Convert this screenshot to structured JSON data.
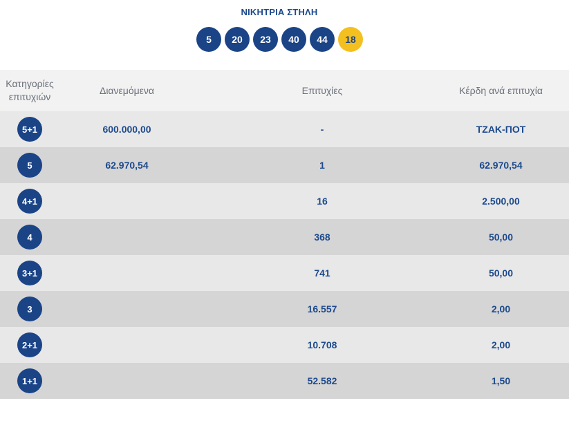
{
  "title": "ΝΙΚΗΤΡΙΑ ΣΤΗΛΗ",
  "winning_numbers": [
    "5",
    "20",
    "23",
    "40",
    "44"
  ],
  "bonus_number": "18",
  "colors": {
    "ball": "#1b4487",
    "bonus_ball": "#f4c01f",
    "text_accent": "#1d4a8d",
    "header_text": "#6a6f79"
  },
  "table": {
    "headers": {
      "category_line1": "Κατηγορίες",
      "category_line2": "επιτυχιών",
      "distributed": "Διανεμόμενα",
      "winners": "Επιτυχίες",
      "prize": "Κέρδη ανά επιτυχία"
    },
    "rows": [
      {
        "category": "5+1",
        "distributed": "600.000,00",
        "winners": "-",
        "prize": "ΤΖΑΚ-ΠΟΤ"
      },
      {
        "category": "5",
        "distributed": "62.970,54",
        "winners": "1",
        "prize": "62.970,54"
      },
      {
        "category": "4+1",
        "distributed": "",
        "winners": "16",
        "prize": "2.500,00"
      },
      {
        "category": "4",
        "distributed": "",
        "winners": "368",
        "prize": "50,00"
      },
      {
        "category": "3+1",
        "distributed": "",
        "winners": "741",
        "prize": "50,00"
      },
      {
        "category": "3",
        "distributed": "",
        "winners": "16.557",
        "prize": "2,00"
      },
      {
        "category": "2+1",
        "distributed": "",
        "winners": "10.708",
        "prize": "2,00"
      },
      {
        "category": "1+1",
        "distributed": "",
        "winners": "52.582",
        "prize": "1,50"
      }
    ]
  }
}
